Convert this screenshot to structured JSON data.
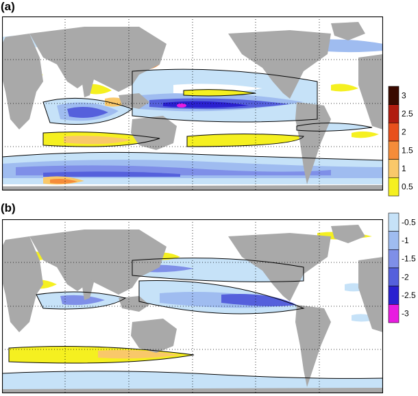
{
  "panels": [
    {
      "label": "(a)"
    },
    {
      "label": "(b)"
    }
  ],
  "colorbar_positive": {
    "ticks": [
      "3",
      "2.5",
      "2",
      "1.5",
      "1",
      "0.5"
    ],
    "colors": [
      "#3a0a00",
      "#b01c10",
      "#e8501c",
      "#f58c3a",
      "#f9c86a",
      "#f5f020"
    ]
  },
  "colorbar_negative": {
    "ticks": [
      "-0.5",
      "-1",
      "-1.5",
      "-2",
      "-2.5",
      "-3"
    ],
    "colors": [
      "#c6e2f8",
      "#9fbcf0",
      "#7f8fe8",
      "#5560dc",
      "#2a20d0",
      "#e81ce0"
    ]
  },
  "colors": {
    "land": "#a9a9a9",
    "ocean": "#ffffff",
    "grid": "#000000"
  }
}
